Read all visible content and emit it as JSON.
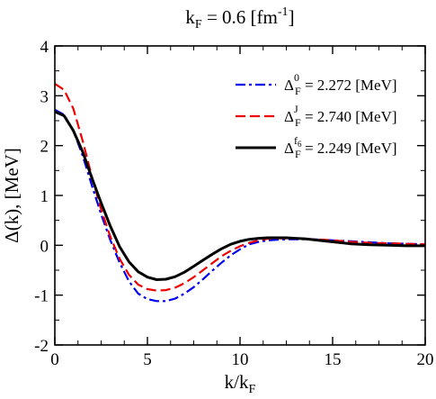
{
  "chart_data": {
    "type": "line",
    "title": "k<sub>F</sub> = 0.6 [fm<sup>-1</sup>]",
    "title_parts": {
      "pre": "k",
      "sub": "F",
      "mid": " = 0.6 [fm",
      "sup": "-1",
      "post": "]"
    },
    "xlabel_parts": {
      "pre": "k/k",
      "sub": "F"
    },
    "ylabel": "Δ(k), [MeV]",
    "xlim": [
      0,
      20
    ],
    "ylim": [
      -2,
      4
    ],
    "xticks": [
      0,
      5,
      10,
      15,
      20
    ],
    "yticks": [
      -2,
      -1,
      0,
      1,
      2,
      3,
      4
    ],
    "grid": false,
    "legend_position": "top-right",
    "series": [
      {
        "name": "Δ_F^0 = 2.272 [MeV]",
        "legend": {
          "sym": "Δ",
          "sub": "F",
          "sup": "0",
          "rest": " = 2.272 [MeV]"
        },
        "color": "#0000ee",
        "dash": "dashdot",
        "x": [
          0,
          0.5,
          1,
          1.5,
          2,
          2.5,
          3,
          3.5,
          4,
          4.5,
          5,
          5.5,
          6,
          6.5,
          7,
          7.5,
          8,
          8.5,
          9,
          9.5,
          10,
          10.5,
          11,
          11.5,
          12,
          12.5,
          13,
          13.5,
          14,
          14.5,
          15,
          16,
          17,
          18,
          19,
          20
        ],
        "y": [
          2.72,
          2.62,
          2.3,
          1.8,
          1.2,
          0.62,
          0.1,
          -0.35,
          -0.72,
          -0.97,
          -1.08,
          -1.12,
          -1.12,
          -1.07,
          -0.97,
          -0.84,
          -0.68,
          -0.51,
          -0.35,
          -0.2,
          -0.08,
          0.02,
          0.07,
          0.1,
          0.11,
          0.12,
          0.12,
          0.12,
          0.12,
          0.11,
          0.1,
          0.08,
          0.06,
          0.04,
          0.03,
          0.02
        ]
      },
      {
        "name": "Δ_F^J = 2.740 [MeV]",
        "legend": {
          "sym": "Δ",
          "sub": "F",
          "sup": "J",
          "rest": " = 2.740 [MeV]"
        },
        "color": "#ee0000",
        "dash": "dashed",
        "x": [
          0,
          0.5,
          1,
          1.5,
          2,
          2.5,
          3,
          3.5,
          4,
          4.5,
          5,
          5.5,
          6,
          6.5,
          7,
          7.5,
          8,
          8.5,
          9,
          9.5,
          10,
          10.5,
          11,
          11.5,
          12,
          12.5,
          13,
          13.5,
          14,
          14.5,
          15,
          16,
          17,
          18,
          19,
          20
        ],
        "y": [
          3.24,
          3.12,
          2.74,
          2.1,
          1.38,
          0.72,
          0.17,
          -0.27,
          -0.59,
          -0.79,
          -0.88,
          -0.91,
          -0.9,
          -0.85,
          -0.76,
          -0.64,
          -0.5,
          -0.36,
          -0.22,
          -0.11,
          -0.02,
          0.05,
          0.1,
          0.13,
          0.14,
          0.14,
          0.14,
          0.13,
          0.12,
          0.11,
          0.1,
          0.07,
          0.05,
          0.04,
          0.03,
          0.02
        ]
      },
      {
        "name": "Δ_F^f6 = 2.249 [MeV]",
        "legend": {
          "sym": "Δ",
          "sub": "F",
          "sup": "f",
          "supsub": "6",
          "rest": " = 2.249 [MeV]"
        },
        "color": "#000000",
        "dash": "solid",
        "x": [
          0,
          0.5,
          1,
          1.5,
          2,
          2.5,
          3,
          3.5,
          4,
          4.5,
          5,
          5.5,
          6,
          6.5,
          7,
          7.5,
          8,
          8.5,
          9,
          9.5,
          10,
          10.5,
          11,
          11.5,
          12,
          12.5,
          13,
          13.5,
          14,
          14.5,
          15,
          16,
          17,
          18,
          19,
          20
        ],
        "y": [
          2.68,
          2.6,
          2.3,
          1.88,
          1.35,
          0.85,
          0.38,
          -0.03,
          -0.33,
          -0.53,
          -0.64,
          -0.69,
          -0.68,
          -0.63,
          -0.54,
          -0.42,
          -0.3,
          -0.18,
          -0.07,
          0.02,
          0.08,
          0.12,
          0.14,
          0.15,
          0.15,
          0.15,
          0.14,
          0.13,
          0.11,
          0.09,
          0.07,
          0.03,
          0.01,
          0,
          -0.01,
          -0.01
        ]
      }
    ]
  }
}
